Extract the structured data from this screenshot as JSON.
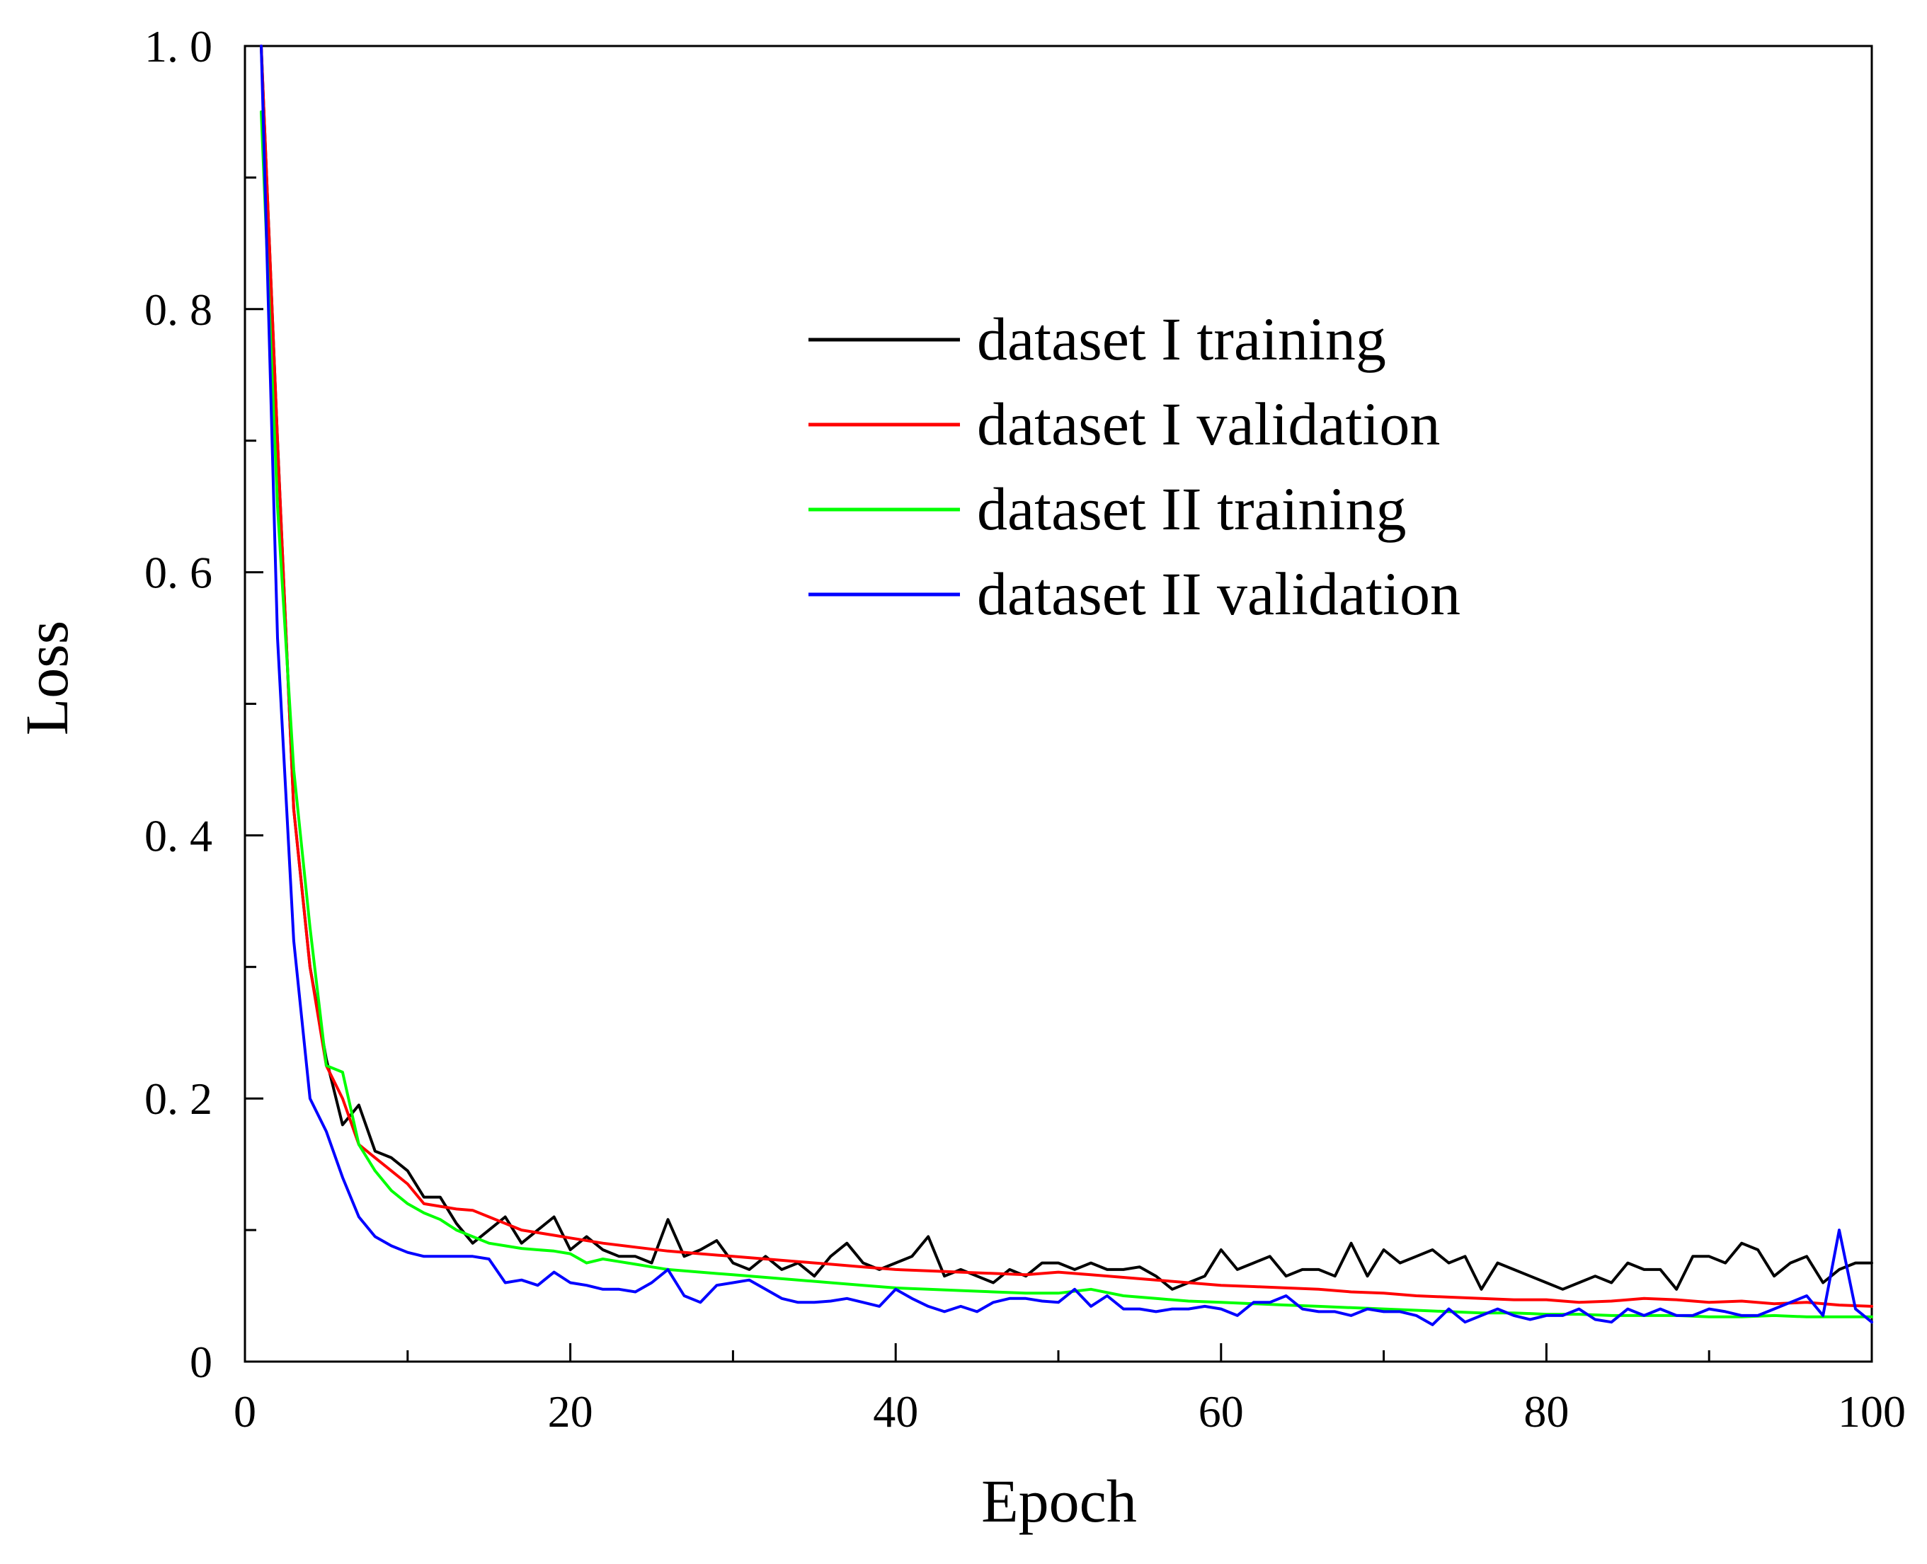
{
  "chart_data": {
    "type": "line",
    "title": "",
    "xlabel": "Epoch",
    "ylabel": "Loss",
    "xlim": [
      0,
      100
    ],
    "ylim": [
      0,
      1.0
    ],
    "grid": false,
    "legend_position": "top-right",
    "x_ticks": [
      0,
      20,
      40,
      60,
      80,
      100
    ],
    "x_tick_labels": [
      "0",
      "20",
      "40",
      "60",
      "80",
      "100"
    ],
    "y_ticks": [
      0,
      0.2,
      0.4,
      0.6,
      0.8,
      1.0
    ],
    "y_tick_labels": [
      "0",
      "0. 2",
      "0. 4",
      "0. 6",
      "0. 8",
      "1. 0"
    ],
    "series": [
      {
        "name": "dataset I training",
        "color": "#000000",
        "points": [
          [
            1,
            1.0
          ],
          [
            2,
            0.7
          ],
          [
            3,
            0.42
          ],
          [
            4,
            0.3
          ],
          [
            5,
            0.23
          ],
          [
            6,
            0.18
          ],
          [
            7,
            0.195
          ],
          [
            8,
            0.16
          ],
          [
            9,
            0.155
          ],
          [
            10,
            0.145
          ],
          [
            11,
            0.125
          ],
          [
            12,
            0.125
          ],
          [
            13,
            0.105
          ],
          [
            14,
            0.09
          ],
          [
            15,
            0.1
          ],
          [
            16,
            0.11
          ],
          [
            17,
            0.09
          ],
          [
            18,
            0.1
          ],
          [
            19,
            0.11
          ],
          [
            20,
            0.085
          ],
          [
            21,
            0.095
          ],
          [
            22,
            0.085
          ],
          [
            23,
            0.08
          ],
          [
            24,
            0.08
          ],
          [
            25,
            0.075
          ],
          [
            26,
            0.108
          ],
          [
            27,
            0.08
          ],
          [
            28,
            0.085
          ],
          [
            29,
            0.092
          ],
          [
            30,
            0.075
          ],
          [
            31,
            0.07
          ],
          [
            32,
            0.08
          ],
          [
            33,
            0.07
          ],
          [
            34,
            0.075
          ],
          [
            35,
            0.065
          ],
          [
            36,
            0.08
          ],
          [
            37,
            0.09
          ],
          [
            38,
            0.075
          ],
          [
            39,
            0.07
          ],
          [
            40,
            0.075
          ],
          [
            41,
            0.08
          ],
          [
            42,
            0.095
          ],
          [
            43,
            0.065
          ],
          [
            44,
            0.07
          ],
          [
            45,
            0.065
          ],
          [
            46,
            0.06
          ],
          [
            47,
            0.07
          ],
          [
            48,
            0.065
          ],
          [
            49,
            0.075
          ],
          [
            50,
            0.075
          ],
          [
            51,
            0.07
          ],
          [
            52,
            0.075
          ],
          [
            53,
            0.07
          ],
          [
            54,
            0.07
          ],
          [
            55,
            0.072
          ],
          [
            56,
            0.065
          ],
          [
            57,
            0.055
          ],
          [
            58,
            0.06
          ],
          [
            59,
            0.065
          ],
          [
            60,
            0.085
          ],
          [
            61,
            0.07
          ],
          [
            62,
            0.075
          ],
          [
            63,
            0.08
          ],
          [
            64,
            0.065
          ],
          [
            65,
            0.07
          ],
          [
            66,
            0.07
          ],
          [
            67,
            0.065
          ],
          [
            68,
            0.09
          ],
          [
            69,
            0.065
          ],
          [
            70,
            0.085
          ],
          [
            71,
            0.075
          ],
          [
            72,
            0.08
          ],
          [
            73,
            0.085
          ],
          [
            74,
            0.075
          ],
          [
            75,
            0.08
          ],
          [
            76,
            0.055
          ],
          [
            77,
            0.075
          ],
          [
            78,
            0.07
          ],
          [
            79,
            0.065
          ],
          [
            80,
            0.06
          ],
          [
            81,
            0.055
          ],
          [
            82,
            0.06
          ],
          [
            83,
            0.065
          ],
          [
            84,
            0.06
          ],
          [
            85,
            0.075
          ],
          [
            86,
            0.07
          ],
          [
            87,
            0.07
          ],
          [
            88,
            0.055
          ],
          [
            89,
            0.08
          ],
          [
            90,
            0.08
          ],
          [
            91,
            0.075
          ],
          [
            92,
            0.09
          ],
          [
            93,
            0.085
          ],
          [
            94,
            0.065
          ],
          [
            95,
            0.075
          ],
          [
            96,
            0.08
          ],
          [
            97,
            0.06
          ],
          [
            98,
            0.07
          ],
          [
            99,
            0.075
          ],
          [
            100,
            0.075
          ]
        ]
      },
      {
        "name": "dataset I validation",
        "color": "#ff0000",
        "points": [
          [
            1,
            1.0
          ],
          [
            2,
            0.7
          ],
          [
            3,
            0.42
          ],
          [
            4,
            0.3
          ],
          [
            5,
            0.225
          ],
          [
            6,
            0.2
          ],
          [
            7,
            0.165
          ],
          [
            8,
            0.155
          ],
          [
            9,
            0.145
          ],
          [
            10,
            0.135
          ],
          [
            11,
            0.12
          ],
          [
            12,
            0.118
          ],
          [
            13,
            0.116
          ],
          [
            14,
            0.115
          ],
          [
            15,
            0.11
          ],
          [
            16,
            0.105
          ],
          [
            17,
            0.1
          ],
          [
            18,
            0.098
          ],
          [
            19,
            0.096
          ],
          [
            20,
            0.094
          ],
          [
            22,
            0.09
          ],
          [
            24,
            0.087
          ],
          [
            26,
            0.084
          ],
          [
            28,
            0.082
          ],
          [
            30,
            0.08
          ],
          [
            32,
            0.078
          ],
          [
            34,
            0.076
          ],
          [
            36,
            0.074
          ],
          [
            38,
            0.072
          ],
          [
            40,
            0.07
          ],
          [
            42,
            0.069
          ],
          [
            44,
            0.068
          ],
          [
            46,
            0.067
          ],
          [
            48,
            0.066
          ],
          [
            50,
            0.068
          ],
          [
            52,
            0.066
          ],
          [
            54,
            0.064
          ],
          [
            56,
            0.062
          ],
          [
            58,
            0.06
          ],
          [
            60,
            0.058
          ],
          [
            62,
            0.057
          ],
          [
            64,
            0.056
          ],
          [
            66,
            0.055
          ],
          [
            68,
            0.053
          ],
          [
            70,
            0.052
          ],
          [
            72,
            0.05
          ],
          [
            74,
            0.049
          ],
          [
            76,
            0.048
          ],
          [
            78,
            0.047
          ],
          [
            80,
            0.047
          ],
          [
            82,
            0.045
          ],
          [
            84,
            0.046
          ],
          [
            86,
            0.048
          ],
          [
            88,
            0.047
          ],
          [
            90,
            0.045
          ],
          [
            92,
            0.046
          ],
          [
            94,
            0.044
          ],
          [
            96,
            0.045
          ],
          [
            98,
            0.043
          ],
          [
            100,
            0.042
          ]
        ]
      },
      {
        "name": "dataset II training",
        "color": "#00ff00",
        "points": [
          [
            1,
            0.95
          ],
          [
            2,
            0.65
          ],
          [
            3,
            0.45
          ],
          [
            4,
            0.33
          ],
          [
            5,
            0.225
          ],
          [
            6,
            0.22
          ],
          [
            7,
            0.165
          ],
          [
            8,
            0.145
          ],
          [
            9,
            0.13
          ],
          [
            10,
            0.12
          ],
          [
            11,
            0.113
          ],
          [
            12,
            0.108
          ],
          [
            13,
            0.1
          ],
          [
            14,
            0.095
          ],
          [
            15,
            0.09
          ],
          [
            16,
            0.088
          ],
          [
            17,
            0.086
          ],
          [
            18,
            0.085
          ],
          [
            19,
            0.084
          ],
          [
            20,
            0.082
          ],
          [
            21,
            0.075
          ],
          [
            22,
            0.078
          ],
          [
            23,
            0.076
          ],
          [
            24,
            0.074
          ],
          [
            25,
            0.072
          ],
          [
            26,
            0.07
          ],
          [
            28,
            0.068
          ],
          [
            30,
            0.066
          ],
          [
            32,
            0.064
          ],
          [
            34,
            0.062
          ],
          [
            36,
            0.06
          ],
          [
            38,
            0.058
          ],
          [
            40,
            0.056
          ],
          [
            42,
            0.055
          ],
          [
            44,
            0.054
          ],
          [
            46,
            0.053
          ],
          [
            48,
            0.052
          ],
          [
            50,
            0.052
          ],
          [
            52,
            0.055
          ],
          [
            54,
            0.05
          ],
          [
            56,
            0.048
          ],
          [
            58,
            0.046
          ],
          [
            60,
            0.045
          ],
          [
            62,
            0.044
          ],
          [
            64,
            0.043
          ],
          [
            66,
            0.042
          ],
          [
            68,
            0.041
          ],
          [
            70,
            0.04
          ],
          [
            72,
            0.039
          ],
          [
            74,
            0.038
          ],
          [
            76,
            0.037
          ],
          [
            78,
            0.037
          ],
          [
            80,
            0.036
          ],
          [
            82,
            0.036
          ],
          [
            84,
            0.035
          ],
          [
            86,
            0.035
          ],
          [
            88,
            0.035
          ],
          [
            90,
            0.034
          ],
          [
            92,
            0.034
          ],
          [
            94,
            0.035
          ],
          [
            96,
            0.034
          ],
          [
            98,
            0.034
          ],
          [
            100,
            0.034
          ]
        ]
      },
      {
        "name": "dataset II validation",
        "color": "#0000ff",
        "points": [
          [
            1,
            1.0
          ],
          [
            2,
            0.55
          ],
          [
            3,
            0.32
          ],
          [
            4,
            0.2
          ],
          [
            5,
            0.175
          ],
          [
            6,
            0.14
          ],
          [
            7,
            0.11
          ],
          [
            8,
            0.095
          ],
          [
            9,
            0.088
          ],
          [
            10,
            0.083
          ],
          [
            11,
            0.08
          ],
          [
            12,
            0.08
          ],
          [
            13,
            0.08
          ],
          [
            14,
            0.08
          ],
          [
            15,
            0.078
          ],
          [
            16,
            0.06
          ],
          [
            17,
            0.062
          ],
          [
            18,
            0.058
          ],
          [
            19,
            0.068
          ],
          [
            20,
            0.06
          ],
          [
            21,
            0.058
          ],
          [
            22,
            0.055
          ],
          [
            23,
            0.055
          ],
          [
            24,
            0.053
          ],
          [
            25,
            0.06
          ],
          [
            26,
            0.07
          ],
          [
            27,
            0.05
          ],
          [
            28,
            0.045
          ],
          [
            29,
            0.058
          ],
          [
            30,
            0.06
          ],
          [
            31,
            0.062
          ],
          [
            32,
            0.055
          ],
          [
            33,
            0.048
          ],
          [
            34,
            0.045
          ],
          [
            35,
            0.045
          ],
          [
            36,
            0.046
          ],
          [
            37,
            0.048
          ],
          [
            38,
            0.045
          ],
          [
            39,
            0.042
          ],
          [
            40,
            0.055
          ],
          [
            41,
            0.048
          ],
          [
            42,
            0.042
          ],
          [
            43,
            0.038
          ],
          [
            44,
            0.042
          ],
          [
            45,
            0.038
          ],
          [
            46,
            0.045
          ],
          [
            47,
            0.048
          ],
          [
            48,
            0.048
          ],
          [
            49,
            0.046
          ],
          [
            50,
            0.045
          ],
          [
            51,
            0.055
          ],
          [
            52,
            0.042
          ],
          [
            53,
            0.05
          ],
          [
            54,
            0.04
          ],
          [
            55,
            0.04
          ],
          [
            56,
            0.038
          ],
          [
            57,
            0.04
          ],
          [
            58,
            0.04
          ],
          [
            59,
            0.042
          ],
          [
            60,
            0.04
          ],
          [
            61,
            0.035
          ],
          [
            62,
            0.045
          ],
          [
            63,
            0.045
          ],
          [
            64,
            0.05
          ],
          [
            65,
            0.04
          ],
          [
            66,
            0.038
          ],
          [
            67,
            0.038
          ],
          [
            68,
            0.035
          ],
          [
            69,
            0.04
          ],
          [
            70,
            0.038
          ],
          [
            71,
            0.038
          ],
          [
            72,
            0.035
          ],
          [
            73,
            0.028
          ],
          [
            74,
            0.04
          ],
          [
            75,
            0.03
          ],
          [
            76,
            0.035
          ],
          [
            77,
            0.04
          ],
          [
            78,
            0.035
          ],
          [
            79,
            0.032
          ],
          [
            80,
            0.035
          ],
          [
            81,
            0.035
          ],
          [
            82,
            0.04
          ],
          [
            83,
            0.032
          ],
          [
            84,
            0.03
          ],
          [
            85,
            0.04
          ],
          [
            86,
            0.035
          ],
          [
            87,
            0.04
          ],
          [
            88,
            0.035
          ],
          [
            89,
            0.035
          ],
          [
            90,
            0.04
          ],
          [
            91,
            0.038
          ],
          [
            92,
            0.035
          ],
          [
            93,
            0.035
          ],
          [
            94,
            0.04
          ],
          [
            95,
            0.045
          ],
          [
            96,
            0.05
          ],
          [
            97,
            0.035
          ],
          [
            98,
            0.1
          ],
          [
            99,
            0.04
          ],
          [
            100,
            0.03
          ]
        ]
      }
    ]
  }
}
